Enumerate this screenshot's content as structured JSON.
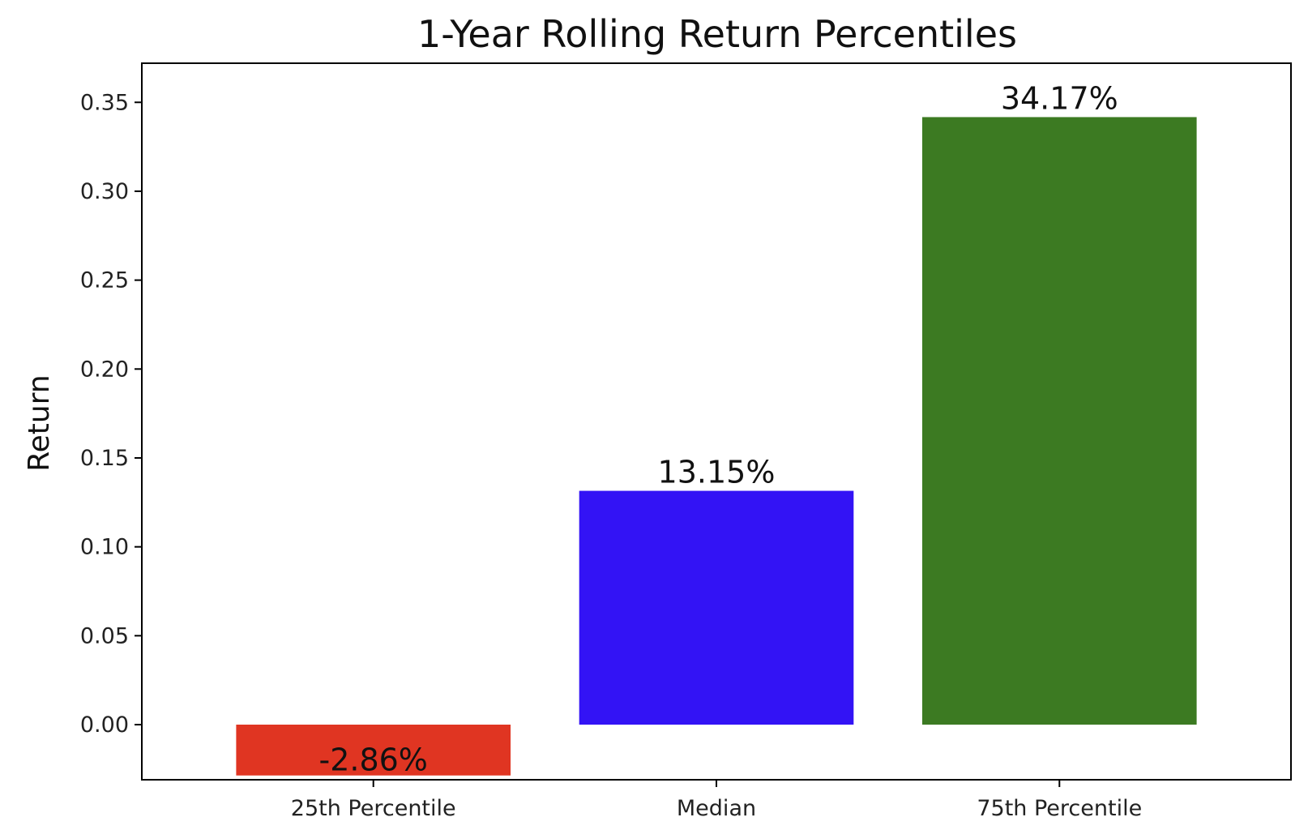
{
  "chart_data": {
    "type": "bar",
    "title": "1-Year Rolling Return Percentiles",
    "xlabel": "",
    "ylabel": "Return",
    "categories": [
      "25th Percentile",
      "Median",
      "75th Percentile"
    ],
    "values": [
      -0.0286,
      0.1315,
      0.3417
    ],
    "data_labels": [
      "-2.86%",
      "13.15%",
      "34.17%"
    ],
    "colors": [
      "#e03522",
      "#3313f5",
      "#3c7a22"
    ],
    "ylim": [
      -0.031,
      0.372
    ],
    "yticks": [
      0.0,
      0.05,
      0.1,
      0.15,
      0.2,
      0.25,
      0.3,
      0.35
    ],
    "ytick_labels": [
      "0.00",
      "0.05",
      "0.10",
      "0.15",
      "0.20",
      "0.25",
      "0.30",
      "0.35"
    ],
    "grid": false,
    "legend": "none"
  }
}
